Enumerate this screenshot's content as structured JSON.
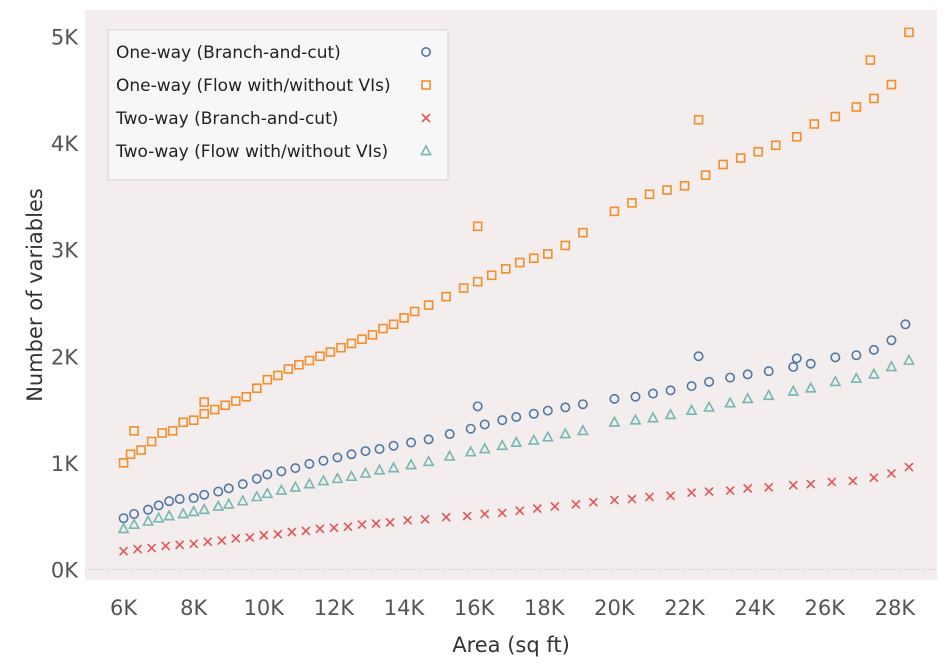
{
  "chart_data": {
    "type": "scatter",
    "xlabel": "Area (sq ft)",
    "ylabel": "Number of variables",
    "x_ticks": [
      6000,
      8000,
      10000,
      12000,
      14000,
      16000,
      18000,
      20000,
      22000,
      24000,
      26000,
      28000
    ],
    "x_tick_labels": [
      "6K",
      "8K",
      "10K",
      "12K",
      "14K",
      "16K",
      "18K",
      "20K",
      "22K",
      "24K",
      "26K",
      "28K"
    ],
    "y_ticks": [
      0,
      1000,
      2000,
      3000,
      4000,
      5000
    ],
    "y_tick_labels": [
      "0K",
      "1K",
      "2K",
      "3K",
      "4K",
      "5K"
    ],
    "xlim": [
      4900,
      29200
    ],
    "ylim": [
      -100,
      5250
    ],
    "legend_position": "top-left",
    "background": "#f3eded",
    "series": [
      {
        "name": "One-way (Branch-and-cut)",
        "marker": "circle",
        "color": "#4e79a7",
        "points": [
          [
            6000,
            480
          ],
          [
            6300,
            520
          ],
          [
            6700,
            560
          ],
          [
            7000,
            600
          ],
          [
            7300,
            640
          ],
          [
            7600,
            660
          ],
          [
            8000,
            670
          ],
          [
            8300,
            700
          ],
          [
            8700,
            730
          ],
          [
            9000,
            760
          ],
          [
            9400,
            800
          ],
          [
            9800,
            850
          ],
          [
            10100,
            890
          ],
          [
            10500,
            920
          ],
          [
            10900,
            950
          ],
          [
            11300,
            990
          ],
          [
            11700,
            1020
          ],
          [
            12100,
            1050
          ],
          [
            12500,
            1080
          ],
          [
            12900,
            1110
          ],
          [
            13300,
            1130
          ],
          [
            13700,
            1160
          ],
          [
            14200,
            1190
          ],
          [
            14700,
            1220
          ],
          [
            15300,
            1270
          ],
          [
            15900,
            1320
          ],
          [
            16300,
            1360
          ],
          [
            16800,
            1400
          ],
          [
            17200,
            1430
          ],
          [
            17700,
            1460
          ],
          [
            18100,
            1490
          ],
          [
            18600,
            1520
          ],
          [
            19100,
            1550
          ],
          [
            20000,
            1600
          ],
          [
            20600,
            1620
          ],
          [
            21100,
            1650
          ],
          [
            21600,
            1680
          ],
          [
            22200,
            1720
          ],
          [
            22700,
            1760
          ],
          [
            23300,
            1800
          ],
          [
            23800,
            1830
          ],
          [
            24400,
            1860
          ],
          [
            25100,
            1900
          ],
          [
            25600,
            1930
          ],
          [
            26300,
            1990
          ],
          [
            26900,
            2010
          ],
          [
            27400,
            2060
          ],
          [
            27900,
            2150
          ],
          [
            28300,
            2300
          ],
          [
            22400,
            2000
          ],
          [
            25200,
            1980
          ],
          [
            16100,
            1530
          ]
        ]
      },
      {
        "name": "One-way (Flow with/without VIs)",
        "marker": "square",
        "color": "#f28e2b",
        "points": [
          [
            6000,
            1000
          ],
          [
            6200,
            1080
          ],
          [
            6500,
            1120
          ],
          [
            6800,
            1200
          ],
          [
            7100,
            1280
          ],
          [
            7400,
            1300
          ],
          [
            7700,
            1380
          ],
          [
            8000,
            1400
          ],
          [
            8300,
            1460
          ],
          [
            8600,
            1500
          ],
          [
            8900,
            1540
          ],
          [
            9200,
            1580
          ],
          [
            9500,
            1620
          ],
          [
            9800,
            1700
          ],
          [
            10100,
            1780
          ],
          [
            10400,
            1820
          ],
          [
            10700,
            1880
          ],
          [
            11000,
            1920
          ],
          [
            11300,
            1960
          ],
          [
            11600,
            2000
          ],
          [
            11900,
            2040
          ],
          [
            12200,
            2080
          ],
          [
            12500,
            2120
          ],
          [
            12800,
            2160
          ],
          [
            13100,
            2200
          ],
          [
            13400,
            2260
          ],
          [
            13700,
            2300
          ],
          [
            14000,
            2360
          ],
          [
            14300,
            2420
          ],
          [
            14700,
            2480
          ],
          [
            15200,
            2560
          ],
          [
            15700,
            2640
          ],
          [
            16100,
            2700
          ],
          [
            16500,
            2760
          ],
          [
            16900,
            2820
          ],
          [
            17300,
            2880
          ],
          [
            17700,
            2920
          ],
          [
            18100,
            2960
          ],
          [
            18600,
            3040
          ],
          [
            19100,
            3160
          ],
          [
            20000,
            3360
          ],
          [
            20500,
            3440
          ],
          [
            21000,
            3520
          ],
          [
            21500,
            3560
          ],
          [
            22000,
            3600
          ],
          [
            22600,
            3700
          ],
          [
            23100,
            3800
          ],
          [
            23600,
            3860
          ],
          [
            24100,
            3920
          ],
          [
            24600,
            3980
          ],
          [
            25200,
            4060
          ],
          [
            25700,
            4180
          ],
          [
            26300,
            4250
          ],
          [
            26900,
            4340
          ],
          [
            27400,
            4420
          ],
          [
            27900,
            4550
          ],
          [
            28400,
            5040
          ],
          [
            22400,
            4220
          ],
          [
            27300,
            4780
          ],
          [
            16100,
            3220
          ],
          [
            6300,
            1300
          ],
          [
            8300,
            1570
          ]
        ]
      },
      {
        "name": "Two-way (Branch-and-cut)",
        "marker": "cross",
        "color": "#e15759",
        "points": [
          [
            6000,
            170
          ],
          [
            6400,
            190
          ],
          [
            6800,
            200
          ],
          [
            7200,
            220
          ],
          [
            7600,
            230
          ],
          [
            8000,
            240
          ],
          [
            8400,
            260
          ],
          [
            8800,
            270
          ],
          [
            9200,
            290
          ],
          [
            9600,
            300
          ],
          [
            10000,
            320
          ],
          [
            10400,
            330
          ],
          [
            10800,
            350
          ],
          [
            11200,
            360
          ],
          [
            11600,
            380
          ],
          [
            12000,
            390
          ],
          [
            12400,
            400
          ],
          [
            12800,
            420
          ],
          [
            13200,
            430
          ],
          [
            13600,
            440
          ],
          [
            14100,
            460
          ],
          [
            14600,
            470
          ],
          [
            15200,
            490
          ],
          [
            15800,
            500
          ],
          [
            16300,
            520
          ],
          [
            16800,
            530
          ],
          [
            17300,
            550
          ],
          [
            17800,
            570
          ],
          [
            18300,
            590
          ],
          [
            18900,
            610
          ],
          [
            19400,
            630
          ],
          [
            20000,
            650
          ],
          [
            20500,
            660
          ],
          [
            21000,
            680
          ],
          [
            21600,
            690
          ],
          [
            22200,
            720
          ],
          [
            22700,
            730
          ],
          [
            23300,
            740
          ],
          [
            23800,
            760
          ],
          [
            24400,
            770
          ],
          [
            25100,
            790
          ],
          [
            25600,
            800
          ],
          [
            26200,
            820
          ],
          [
            26800,
            830
          ],
          [
            27400,
            860
          ],
          [
            27900,
            900
          ],
          [
            28400,
            960
          ]
        ]
      },
      {
        "name": "Two-way (Flow with/without VIs)",
        "marker": "triangle",
        "color": "#76b7b2",
        "points": [
          [
            6000,
            380
          ],
          [
            6300,
            420
          ],
          [
            6700,
            450
          ],
          [
            7000,
            480
          ],
          [
            7300,
            500
          ],
          [
            7700,
            520
          ],
          [
            8000,
            540
          ],
          [
            8300,
            560
          ],
          [
            8700,
            590
          ],
          [
            9000,
            610
          ],
          [
            9400,
            640
          ],
          [
            9800,
            680
          ],
          [
            10100,
            710
          ],
          [
            10500,
            740
          ],
          [
            10900,
            770
          ],
          [
            11300,
            800
          ],
          [
            11700,
            830
          ],
          [
            12100,
            850
          ],
          [
            12500,
            870
          ],
          [
            12900,
            900
          ],
          [
            13300,
            930
          ],
          [
            13700,
            950
          ],
          [
            14200,
            980
          ],
          [
            14700,
            1010
          ],
          [
            15300,
            1060
          ],
          [
            15900,
            1100
          ],
          [
            16300,
            1130
          ],
          [
            16800,
            1160
          ],
          [
            17200,
            1190
          ],
          [
            17700,
            1210
          ],
          [
            18100,
            1240
          ],
          [
            18600,
            1270
          ],
          [
            19100,
            1300
          ],
          [
            20000,
            1380
          ],
          [
            20600,
            1400
          ],
          [
            21100,
            1420
          ],
          [
            21600,
            1450
          ],
          [
            22200,
            1490
          ],
          [
            22700,
            1520
          ],
          [
            23300,
            1560
          ],
          [
            23800,
            1600
          ],
          [
            24400,
            1630
          ],
          [
            25100,
            1670
          ],
          [
            25600,
            1700
          ],
          [
            26300,
            1760
          ],
          [
            26900,
            1790
          ],
          [
            27400,
            1830
          ],
          [
            27900,
            1900
          ],
          [
            28400,
            1960
          ]
        ]
      }
    ]
  }
}
